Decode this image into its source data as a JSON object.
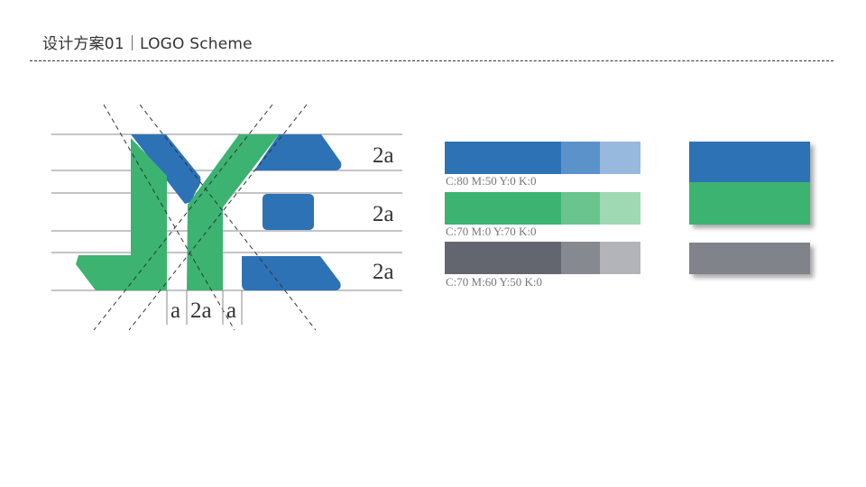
{
  "header": {
    "title": "设计方案01｜LOGO Scheme"
  },
  "logo": {
    "colors": {
      "blue": "#2e72b6",
      "green": "#3cb371"
    },
    "dimension_labels": {
      "row1": "2a",
      "row2": "2a",
      "row3": "2a",
      "col1": "a",
      "col2": "2a",
      "col3": "a"
    }
  },
  "palette": {
    "rows": [
      {
        "label": "C:80 M:50 Y:0 K:0",
        "colors": [
          "#2e72b6",
          "#5b92c9",
          "#97b9de"
        ]
      },
      {
        "label": "C:70 M:0 Y:70 K:0",
        "colors": [
          "#3cb371",
          "#6ac48d",
          "#9fd9b4"
        ]
      },
      {
        "label": "C:70 M:60 Y:50 K:0",
        "colors": [
          "#63666f",
          "#868990",
          "#b3b4b9"
        ]
      }
    ],
    "brand_swatch": {
      "top": "#2e72b6",
      "bottom": "#3cb371",
      "gray": "#80838a"
    }
  }
}
